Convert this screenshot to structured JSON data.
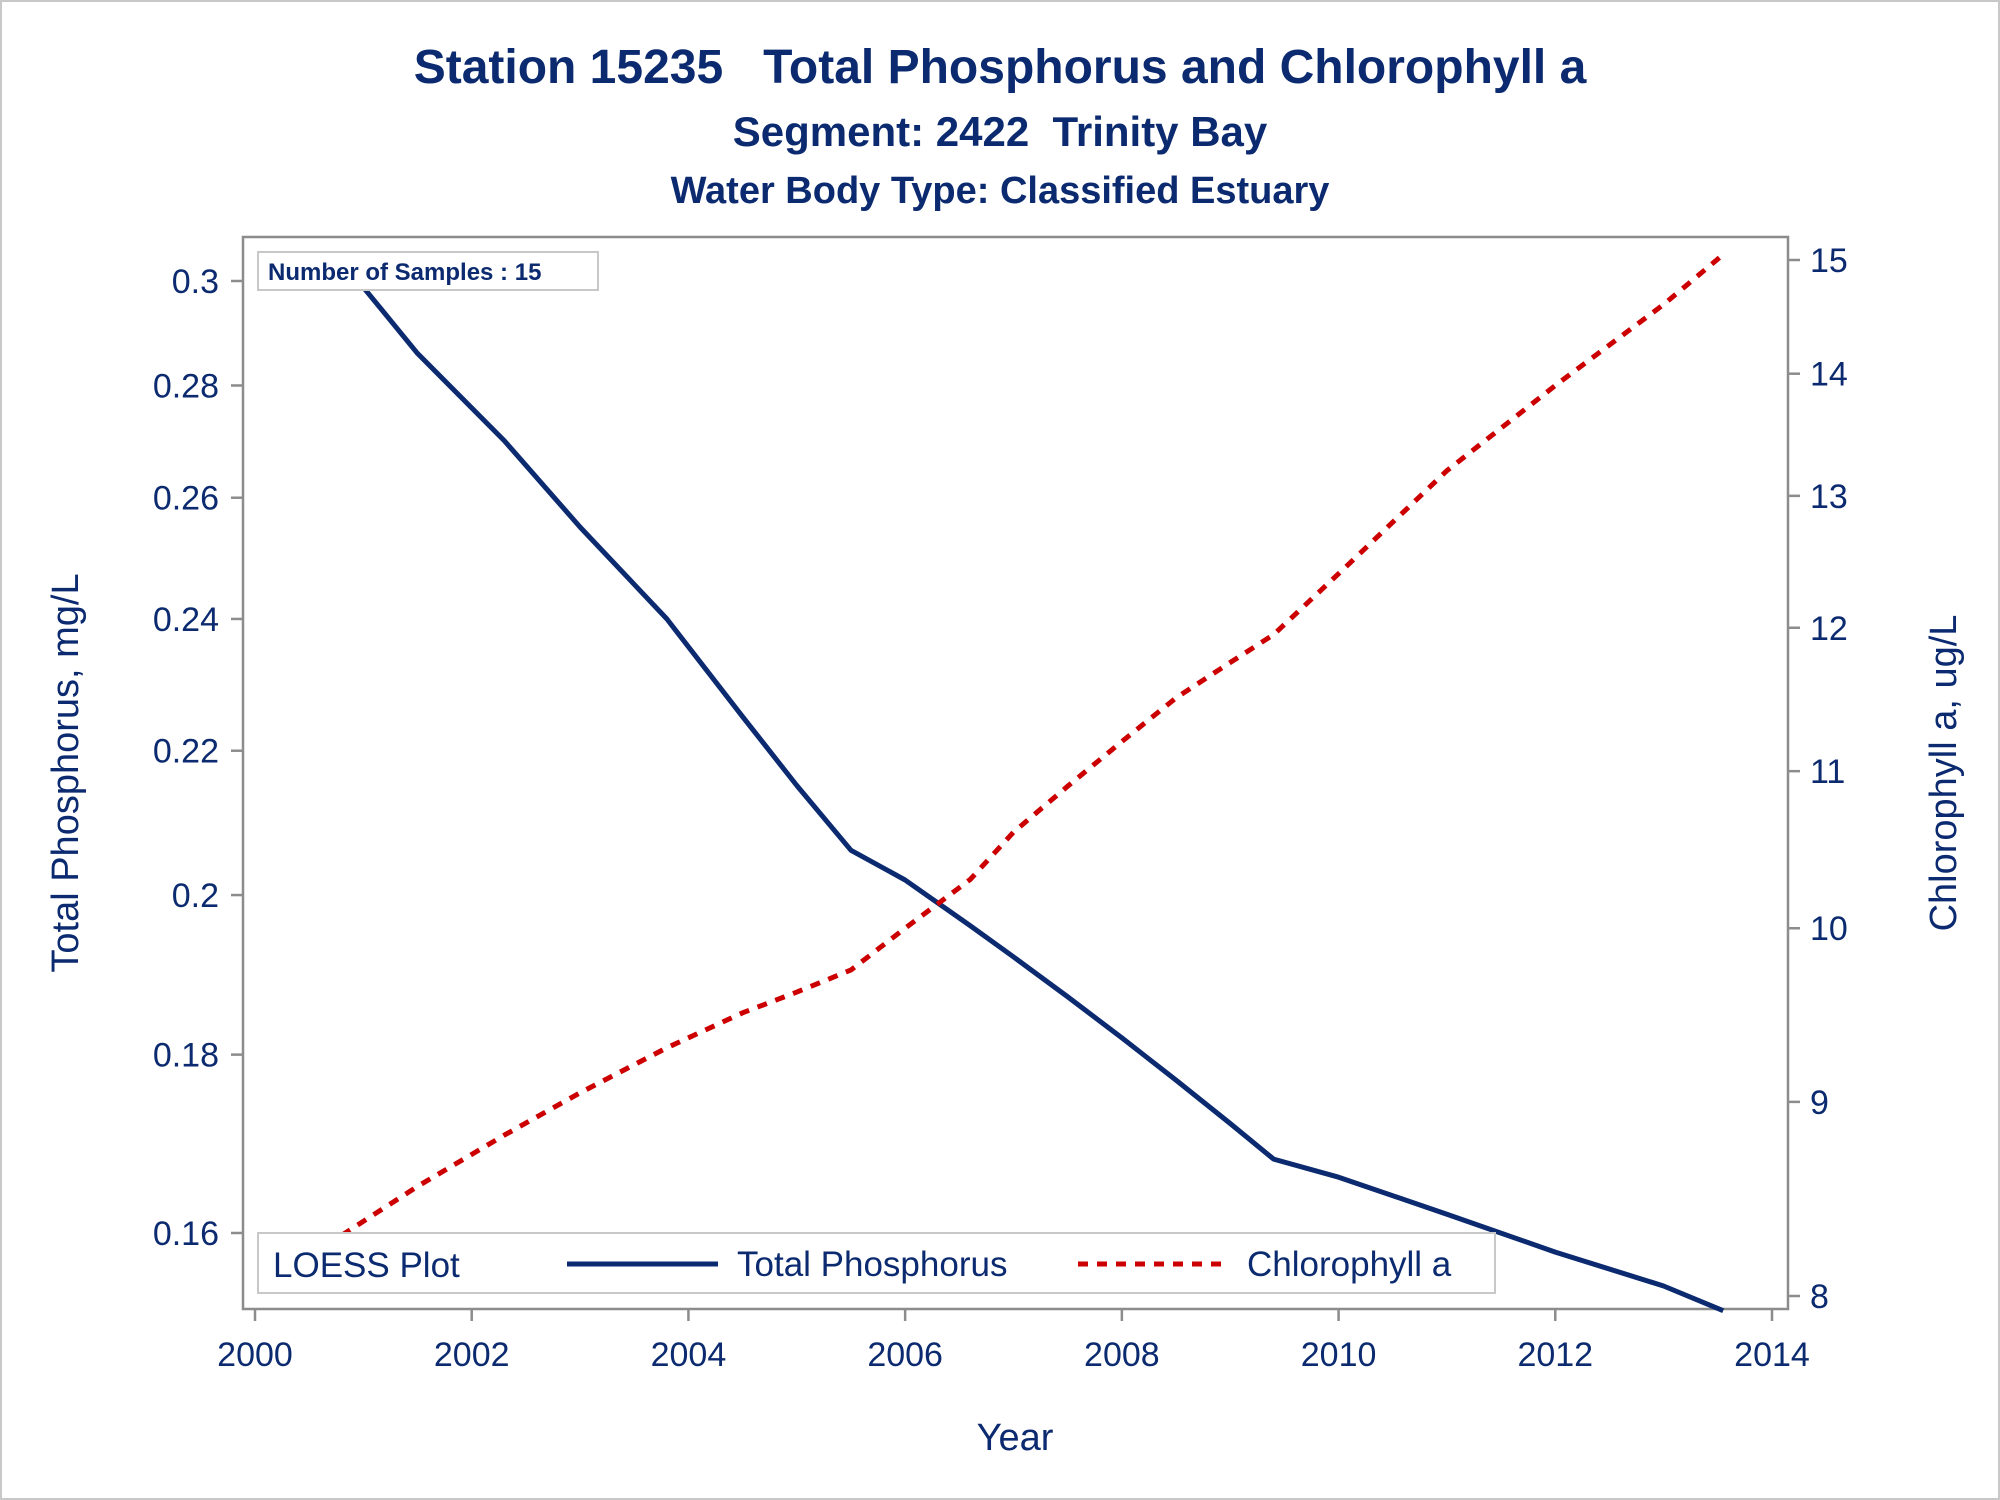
{
  "titles": {
    "line1": "Station 15235   Total Phosphorus and Chlorophyll a",
    "line2": "Segment: 2422  Trinity Bay",
    "line3": "Water Body Type: Classified Estuary"
  },
  "annotation": "Number of Samples : 15",
  "legend": {
    "title": "LOESS Plot",
    "items": [
      "Total Phosphorus",
      "Chlorophyll a"
    ]
  },
  "colors": {
    "phosphorus": "#0b2a6f",
    "chlorophyll": "#cc0000",
    "text": "#0b2a6f",
    "axis": "#8c8c8c"
  },
  "chart_data": {
    "type": "line",
    "xlabel": "Year",
    "ylabel": "Total Phosphorus, mg/L",
    "y2label": "Chlorophyll a, ug/L",
    "xlim": [
      2000,
      2014
    ],
    "x_ticks": [
      "2000",
      "2002",
      "2004",
      "2006",
      "2008",
      "2010",
      "2012",
      "2014"
    ],
    "y_scale": "log",
    "y_ticks": [
      "0.16",
      "0.18",
      "0.2",
      "0.22",
      "0.24",
      "0.26",
      "0.28",
      "0.3"
    ],
    "y2_scale": "log",
    "y2_ticks": [
      "8",
      "9",
      "10",
      "11",
      "12",
      "13",
      "14",
      "15"
    ],
    "grid": false,
    "legend_position": "bottom-left",
    "series": [
      {
        "name": "Total Phosphorus",
        "axis": "left",
        "style": "solid",
        "x": [
          2000.8,
          2001.5,
          2002.3,
          2003.0,
          2003.8,
          2004.5,
          2005.0,
          2005.5,
          2006.0,
          2006.6,
          2007.0,
          2007.5,
          2008.0,
          2008.5,
          2009.0,
          2009.4,
          2010.0,
          2011.0,
          2012.0,
          2013.0,
          2013.55
        ],
        "values": [
          0.304,
          0.286,
          0.27,
          0.255,
          0.24,
          0.225,
          0.215,
          0.206,
          0.202,
          0.196,
          0.192,
          0.187,
          0.182,
          0.177,
          0.172,
          0.168,
          0.166,
          0.162,
          0.158,
          0.1545,
          0.152
        ]
      },
      {
        "name": "Chlorophyll a",
        "axis": "right",
        "style": "dashed",
        "x": [
          2000.8,
          2001.5,
          2002.3,
          2003.0,
          2003.8,
          2004.5,
          2005.0,
          2005.5,
          2006.0,
          2006.6,
          2007.0,
          2007.5,
          2008.0,
          2008.5,
          2009.0,
          2009.4,
          2010.0,
          2011.0,
          2012.0,
          2013.0,
          2013.55
        ],
        "values": [
          8.3,
          8.55,
          8.82,
          9.05,
          9.3,
          9.5,
          9.62,
          9.75,
          10.0,
          10.3,
          10.6,
          10.9,
          11.2,
          11.5,
          11.75,
          11.95,
          12.4,
          13.2,
          13.9,
          14.6,
          15.05
        ]
      }
    ]
  }
}
